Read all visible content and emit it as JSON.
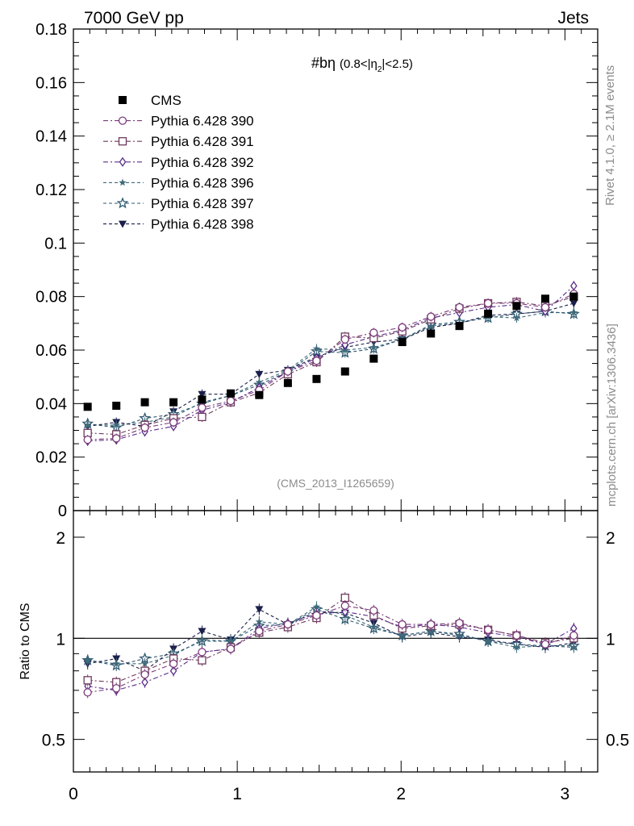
{
  "header": {
    "energy_label": "7000 GeV pp",
    "category_label": "Jets",
    "watermark_rivet": "Rivet 4.1.0, ≥ 2.1M events",
    "watermark_mcplots": "mcplots.cern.ch [arXiv:1306.3436]",
    "analysis_id": "(CMS_2013_I1265659)"
  },
  "plot_title": {
    "main": "#bη",
    "range_a": "(0.8<|η",
    "range_sub": "2",
    "range_b": "|<2.5)"
  },
  "ratio_ylabel": "Ratio to CMS",
  "colors": {
    "data": "#000000",
    "s390": "#7b3b7b",
    "s391": "#6e3a5e",
    "s392": "#5a2e8a",
    "s396": "#3f6a7a",
    "s397": "#2e5870",
    "s398": "#1a1f4a"
  },
  "chart_data": [
    {
      "type": "scatter",
      "panel": "main",
      "xlim": [
        0,
        3.2
      ],
      "ylim": [
        0,
        0.18
      ],
      "yticks": [
        0,
        0.02,
        0.04,
        0.06,
        0.08,
        0.1,
        0.12,
        0.14,
        0.16,
        0.18
      ],
      "ytick_labels": [
        "0",
        "0.02",
        "0.04",
        "0.06",
        "0.08",
        "0.1",
        "0.12",
        "0.14",
        "0.16",
        "0.18"
      ],
      "x": [
        0.087,
        0.262,
        0.436,
        0.611,
        0.785,
        0.96,
        1.134,
        1.309,
        1.484,
        1.658,
        1.833,
        2.007,
        2.182,
        2.356,
        2.531,
        2.705,
        2.88,
        3.054
      ],
      "series": [
        {
          "name": "CMS",
          "key": "data",
          "marker": "filled-square",
          "values": [
            0.0388,
            0.0392,
            0.0405,
            0.0405,
            0.0415,
            0.0438,
            0.0432,
            0.0477,
            0.0492,
            0.052,
            0.0568,
            0.063,
            0.0662,
            0.069,
            0.0736,
            0.0765,
            0.0792,
            0.08
          ]
        },
        {
          "name": "Pythia 6.428 390",
          "key": "s390",
          "marker": "open-circle",
          "values": [
            0.0265,
            0.027,
            0.031,
            0.033,
            0.0385,
            0.041,
            0.045,
            0.052,
            0.056,
            0.064,
            0.0665,
            0.0685,
            0.0725,
            0.076,
            0.0775,
            0.0775,
            0.076,
            0.081
          ]
        },
        {
          "name": "Pythia 6.428 391",
          "key": "s391",
          "marker": "open-square",
          "values": [
            0.029,
            0.0285,
            0.032,
            0.0345,
            0.035,
            0.0405,
            0.044,
            0.051,
            0.0555,
            0.065,
            0.0645,
            0.067,
            0.0715,
            0.0755,
            0.0775,
            0.078,
            0.0765,
            0.08
          ]
        },
        {
          "name": "Pythia 6.428 392",
          "key": "s392",
          "marker": "open-diamond",
          "values": [
            0.026,
            0.0265,
            0.0295,
            0.0315,
            0.0375,
            0.0405,
            0.046,
            0.052,
            0.057,
            0.062,
            0.065,
            0.0675,
            0.072,
            0.074,
            0.076,
            0.077,
            0.0745,
            0.084
          ]
        },
        {
          "name": "Pythia 6.428 396",
          "key": "s396",
          "marker": "filled-star",
          "values": [
            0.032,
            0.032,
            0.033,
            0.035,
            0.0405,
            0.043,
            0.048,
            0.0525,
            0.0605,
            0.06,
            0.061,
            0.064,
            0.069,
            0.07,
            0.0725,
            0.072,
            0.074,
            0.074
          ]
        },
        {
          "name": "Pythia 6.428 397",
          "key": "s397",
          "marker": "open-star",
          "values": [
            0.0325,
            0.031,
            0.0345,
            0.036,
            0.04,
            0.043,
            0.047,
            0.052,
            0.0595,
            0.059,
            0.0605,
            0.064,
            0.0695,
            0.0705,
            0.072,
            0.0735,
            0.0745,
            0.0735
          ]
        },
        {
          "name": "Pythia 6.428 398",
          "key": "s398",
          "marker": "filled-down-triangle",
          "values": [
            0.0315,
            0.033,
            0.0315,
            0.037,
            0.0435,
            0.0435,
            0.051,
            0.0525,
            0.0575,
            0.061,
            0.063,
            0.064,
            0.0685,
            0.07,
            0.073,
            0.0735,
            0.0745,
            0.0775
          ]
        }
      ]
    },
    {
      "type": "scatter",
      "panel": "ratio",
      "xlim": [
        0,
        3.2
      ],
      "ylim": [
        0.4,
        2.4
      ],
      "yscale": "log",
      "yticks": [
        0.5,
        1,
        2
      ],
      "ytick_labels": [
        "0.5",
        "1",
        "2"
      ],
      "xticks": [
        0,
        1,
        2,
        3
      ],
      "xtick_labels": [
        "0",
        "1",
        "2",
        "3"
      ],
      "xlabel": "",
      "ylabel": "Ratio to CMS",
      "x": [
        0.087,
        0.262,
        0.436,
        0.611,
        0.785,
        0.96,
        1.134,
        1.309,
        1.484,
        1.658,
        1.833,
        2.007,
        2.182,
        2.356,
        2.531,
        2.705,
        2.88,
        3.054
      ],
      "series": [
        {
          "name": "Pythia 6.428 390",
          "key": "s390",
          "marker": "open-circle",
          "values": [
            0.69,
            0.71,
            0.78,
            0.84,
            0.91,
            0.93,
            1.05,
            1.1,
            1.17,
            1.25,
            1.21,
            1.1,
            1.1,
            1.11,
            1.06,
            1.02,
            0.96,
            1.02
          ]
        },
        {
          "name": "Pythia 6.428 391",
          "key": "s391",
          "marker": "open-square",
          "values": [
            0.75,
            0.74,
            0.8,
            0.87,
            0.86,
            0.94,
            1.04,
            1.08,
            1.15,
            1.32,
            1.17,
            1.07,
            1.09,
            1.1,
            1.06,
            1.02,
            0.97,
            1.0
          ]
        },
        {
          "name": "Pythia 6.428 392",
          "key": "s392",
          "marker": "open-diamond",
          "values": [
            0.72,
            0.7,
            0.74,
            0.8,
            0.91,
            0.93,
            1.07,
            1.11,
            1.18,
            1.2,
            1.16,
            1.08,
            1.1,
            1.08,
            1.04,
            1.01,
            0.96,
            1.07
          ]
        },
        {
          "name": "Pythia 6.428 396",
          "key": "s396",
          "marker": "filled-star",
          "values": [
            0.86,
            0.84,
            0.84,
            0.89,
            0.99,
            0.98,
            1.12,
            1.1,
            1.24,
            1.17,
            1.08,
            1.02,
            1.05,
            1.02,
            0.98,
            0.94,
            0.95,
            0.94
          ]
        },
        {
          "name": "Pythia 6.428 397",
          "key": "s397",
          "marker": "open-star",
          "values": [
            0.86,
            0.83,
            0.87,
            0.9,
            0.98,
            0.98,
            1.09,
            1.1,
            1.22,
            1.14,
            1.07,
            1.02,
            1.05,
            1.03,
            0.98,
            0.96,
            0.95,
            0.95
          ]
        },
        {
          "name": "Pythia 6.428 398",
          "key": "s398",
          "marker": "filled-down-triangle",
          "values": [
            0.84,
            0.87,
            0.8,
            0.93,
            1.05,
            0.99,
            1.22,
            1.1,
            1.2,
            1.19,
            1.11,
            1.01,
            1.04,
            1.01,
            0.99,
            0.96,
            0.94,
            0.97
          ]
        }
      ]
    }
  ]
}
